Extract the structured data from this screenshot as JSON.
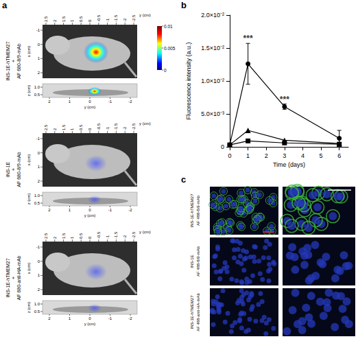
{
  "panel_a": {
    "letter": "a",
    "colorbar": {
      "range": [
        0,
        0.01
      ],
      "ticks": [
        0,
        0.005,
        0.01
      ]
    },
    "top_axis": {
      "title": "y (cm)",
      "ticks": [
        2.5,
        2,
        1.5,
        1,
        0.5,
        0,
        -0.5,
        -1,
        -1.5,
        -2,
        -2.5
      ]
    },
    "left_axis": {
      "title": "x (cm)",
      "ticks": [
        -1,
        0,
        1,
        2
      ]
    },
    "side_z_axis": {
      "title": "z (cm)",
      "ticks": [
        {
          "value": 1,
          "label": "1.0"
        },
        0.5
      ]
    },
    "side_bottom_axis": {
      "title": "y (cm)",
      "ticks": [
        2,
        1,
        0,
        -1,
        -2
      ]
    },
    "rows": [
      {
        "label": [
          "INS-1E-hTMEM27",
          "+",
          "AF 680-8/9-mAb"
        ]
      },
      {
        "label": [
          "INS-1E",
          "+",
          "AF 680-8/9-mAb"
        ]
      },
      {
        "label": [
          "INS-1E-hTMEM27",
          "+",
          "AF 680-anti-HA-mAb"
        ]
      }
    ]
  },
  "panel_b": {
    "letter": "b"
  },
  "chart_data": {
    "type": "line",
    "x_label": "Time (days)",
    "y_label": "Fluorescence intensity (a.u.)",
    "x": [
      0,
      1,
      3,
      6
    ],
    "xlim": [
      0,
      6.5
    ],
    "xticks": [
      0,
      1,
      2,
      3,
      4,
      5,
      6
    ],
    "ylim": [
      0,
      0.02
    ],
    "yticks": [
      0,
      {
        "value": 0.005,
        "label": "5.0×10⁻³"
      },
      {
        "value": 0.01,
        "label": "1.0×10⁻²"
      },
      {
        "value": 0.015,
        "label": "1.5×10⁻²"
      },
      {
        "value": 0.02,
        "label": "2.0×10⁻²"
      }
    ],
    "grid": false,
    "series": [
      {
        "marker": "circle",
        "color": "#000000",
        "line_style": "solid",
        "values": [
          0.0003,
          0.0126,
          0.0061,
          0.0013
        ],
        "errors": [
          0,
          0.0031,
          0.0004,
          0.0012
        ]
      },
      {
        "marker": "triangle",
        "color": "#000000",
        "line_style": "solid",
        "values": [
          0.0003,
          0.0025,
          0.001,
          0.0005
        ]
      },
      {
        "marker": "square",
        "color": "#000000",
        "line_style": "solid",
        "values": [
          0.0003,
          0.0009,
          0.0006,
          0.0004
        ]
      }
    ],
    "annotations": [
      {
        "x": 1,
        "text": "***"
      },
      {
        "x": 3,
        "text": "***"
      }
    ]
  },
  "panel_c": {
    "letter": "c",
    "rows": [
      {
        "label": [
          "INS-1E-hTMEM27",
          "AF 488-8/9-mAb"
        ]
      },
      {
        "label": [
          "INS-1E",
          "AF 488-8/9-mAb"
        ]
      },
      {
        "label": [
          "INS-1E-hTMEM27",
          "AF 488-anti-HA-mAb"
        ]
      }
    ]
  }
}
